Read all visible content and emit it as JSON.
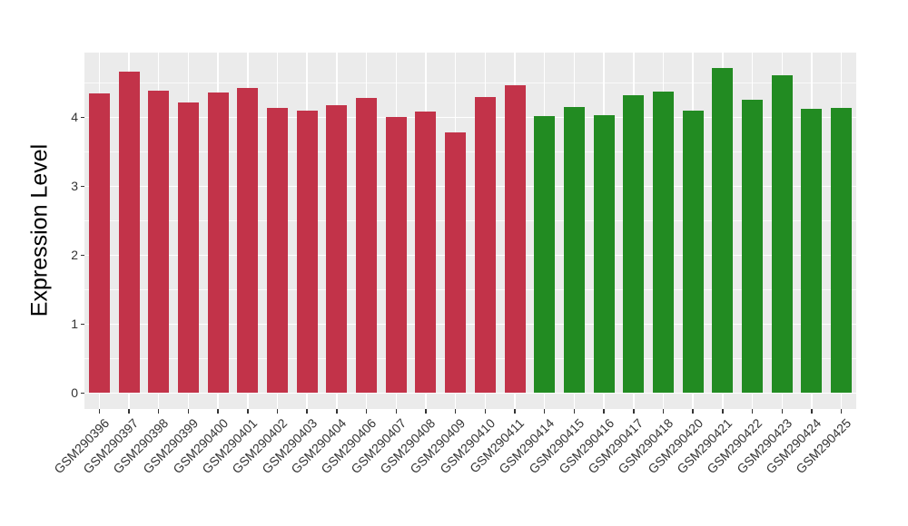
{
  "chart_data": {
    "type": "bar",
    "title": "",
    "ylabel": "Expression Level",
    "xlabel": "",
    "categories": [
      "GSM290396",
      "GSM290397",
      "GSM290398",
      "GSM290399",
      "GSM290400",
      "GSM290401",
      "GSM290402",
      "GSM290403",
      "GSM290404",
      "GSM290406",
      "GSM290407",
      "GSM290408",
      "GSM290409",
      "GSM290410",
      "GSM290411",
      "GSM290414",
      "GSM290415",
      "GSM290416",
      "GSM290417",
      "GSM290418",
      "GSM290420",
      "GSM290421",
      "GSM290422",
      "GSM290423",
      "GSM290424",
      "GSM290425"
    ],
    "values": [
      4.35,
      4.66,
      4.38,
      4.21,
      4.36,
      4.43,
      4.14,
      4.1,
      4.18,
      4.28,
      4.01,
      4.08,
      3.78,
      4.3,
      4.47,
      4.02,
      4.15,
      4.03,
      4.32,
      4.37,
      4.09,
      4.71,
      4.25,
      4.61,
      4.12,
      4.14
    ],
    "groups": [
      "red",
      "red",
      "red",
      "red",
      "red",
      "red",
      "red",
      "red",
      "red",
      "red",
      "red",
      "red",
      "red",
      "red",
      "red",
      "green",
      "green",
      "green",
      "green",
      "green",
      "green",
      "green",
      "green",
      "green",
      "green",
      "green"
    ],
    "group_colors": {
      "red": "#C23349",
      "green": "#228B22"
    },
    "ylim": [
      0,
      4.94
    ],
    "yticks": [
      0,
      1,
      2,
      3,
      4
    ],
    "yticks_minor": [
      0.5,
      1.5,
      2.5,
      3.5,
      4.5
    ],
    "grid": "on",
    "legend_position": "none",
    "panel_bg": "#EBEBEB",
    "grid_color": "#FFFFFF",
    "axis_text_color": "#333333"
  }
}
